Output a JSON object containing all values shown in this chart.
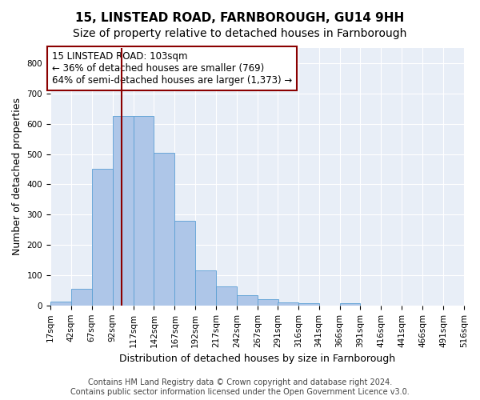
{
  "title": "15, LINSTEAD ROAD, FARNBOROUGH, GU14 9HH",
  "subtitle": "Size of property relative to detached houses in Farnborough",
  "xlabel": "Distribution of detached houses by size in Farnborough",
  "ylabel": "Number of detached properties",
  "bar_values": [
    12,
    55,
    450,
    625,
    625,
    505,
    280,
    117,
    63,
    35,
    20,
    10,
    8,
    0,
    8,
    0,
    0,
    0,
    0,
    0
  ],
  "bin_edges": [
    17,
    42,
    67,
    92,
    117,
    142,
    167,
    192,
    217,
    242,
    267,
    291,
    316,
    341,
    366,
    391,
    416,
    441,
    466,
    491,
    516
  ],
  "tick_labels": [
    "17sqm",
    "42sqm",
    "67sqm",
    "92sqm",
    "117sqm",
    "142sqm",
    "167sqm",
    "192sqm",
    "217sqm",
    "242sqm",
    "267sqm",
    "291sqm",
    "316sqm",
    "341sqm",
    "366sqm",
    "391sqm",
    "416sqm",
    "441sqm",
    "466sqm",
    "491sqm",
    "516sqm"
  ],
  "bar_color": "#aec6e8",
  "bar_edge_color": "#5a9fd4",
  "property_line_x": 103,
  "property_line_color": "#8b0000",
  "annotation_text": "15 LINSTEAD ROAD: 103sqm\n← 36% of detached houses are smaller (769)\n64% of semi-detached houses are larger (1,373) →",
  "annotation_box_color": "#ffffff",
  "annotation_box_edge": "#8b0000",
  "ylim": [
    0,
    850
  ],
  "yticks": [
    0,
    100,
    200,
    300,
    400,
    500,
    600,
    700,
    800
  ],
  "bg_color": "#e8eef7",
  "footer_text": "Contains HM Land Registry data © Crown copyright and database right 2024.\nContains public sector information licensed under the Open Government Licence v3.0.",
  "title_fontsize": 11,
  "subtitle_fontsize": 10,
  "xlabel_fontsize": 9,
  "ylabel_fontsize": 9,
  "tick_fontsize": 7.5,
  "annotation_fontsize": 8.5,
  "footer_fontsize": 7
}
